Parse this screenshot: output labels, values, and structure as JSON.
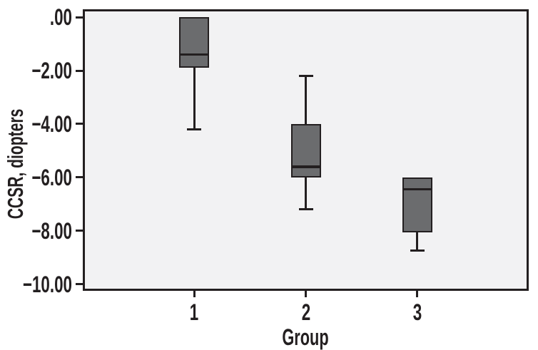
{
  "chart_data": {
    "type": "boxplot",
    "title": "",
    "xlabel": "Group",
    "ylabel": "CCSR, diopters",
    "ylim": [
      -10.25,
      0.3
    ],
    "xlim": [
      0,
      4
    ],
    "grid": false,
    "legend": "none",
    "plot_background": "#f2f2f3",
    "line_color": "#231f20",
    "box_fill": "#6b6c6e",
    "yticks": [
      {
        "label": ".00",
        "value": 0
      },
      {
        "label": "−2.00",
        "value": -2
      },
      {
        "label": "−4.00",
        "value": -4
      },
      {
        "label": "−6.00",
        "value": -6
      },
      {
        "label": "−8.00",
        "value": -8
      },
      {
        "label": "−10.00",
        "value": -10
      }
    ],
    "categories": [
      {
        "label": "1",
        "position": 1
      },
      {
        "label": "2",
        "position": 2
      },
      {
        "label": "3",
        "position": 3
      }
    ],
    "series": [
      {
        "group": "1",
        "whisker_low": -4.2,
        "q1": -1.9,
        "median": -1.4,
        "q3": 0.0,
        "whisker_high": 0.0
      },
      {
        "group": "2",
        "whisker_low": -7.2,
        "q1": -6.0,
        "median": -5.6,
        "q3": -4.0,
        "whisker_high": -2.2
      },
      {
        "group": "3",
        "whisker_low": -8.75,
        "q1": -8.05,
        "median": -6.45,
        "q3": -6.0,
        "whisker_high": -6.0
      }
    ]
  }
}
